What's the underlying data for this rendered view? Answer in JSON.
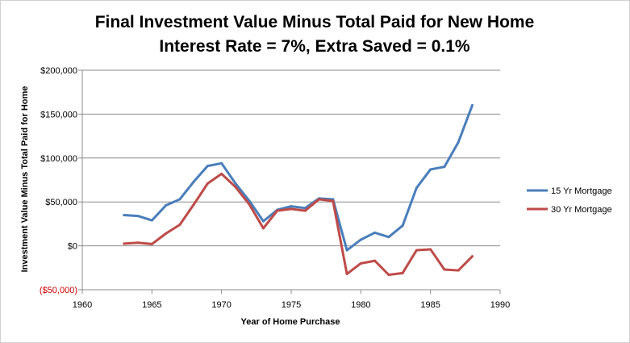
{
  "chart_data": {
    "type": "line",
    "title": "Final Investment Value Minus Total Paid for New Home",
    "subtitle": "Interest Rate = 7%, Extra Saved = 0.1%",
    "xlabel": "Year of Home Purchase",
    "ylabel": "Investment Value Minus Total Paid  for Home",
    "xlim": [
      1960,
      1990
    ],
    "ylim": [
      -50000,
      200000
    ],
    "x_ticks": [
      "1960",
      "1965",
      "1970",
      "1975",
      "1980",
      "1985",
      "1990"
    ],
    "y_ticks": [
      "$200,000",
      "$150,000",
      "$100,000",
      "$50,000",
      "$0",
      "($50,000)"
    ],
    "grid": "horizontal",
    "legend_position": "right",
    "x": [
      1963,
      1964,
      1965,
      1966,
      1967,
      1968,
      1969,
      1970,
      1971,
      1972,
      1973,
      1974,
      1975,
      1976,
      1977,
      1978,
      1979,
      1980,
      1981,
      1982,
      1983,
      1984,
      1985,
      1986,
      1987,
      1988
    ],
    "series": [
      {
        "name": "15 Yr Mortgage",
        "color": "#4a7ebb",
        "values": [
          35000,
          34000,
          29000,
          46000,
          53000,
          73000,
          91000,
          94000,
          71000,
          51000,
          28000,
          41000,
          45000,
          43000,
          54000,
          53000,
          -5000,
          7000,
          15000,
          10000,
          23000,
          66000,
          87000,
          90000,
          118000,
          160000
        ]
      },
      {
        "name": "30 Yr Mortgage",
        "color": "#be4b48",
        "values": [
          2500,
          3500,
          2000,
          14000,
          24000,
          47000,
          71000,
          82000,
          67000,
          47000,
          20000,
          40000,
          42000,
          40000,
          53000,
          51000,
          -32000,
          -20000,
          -17000,
          -33000,
          -31000,
          -5000,
          -4000,
          -27000,
          -28000,
          -12000
        ]
      }
    ]
  }
}
